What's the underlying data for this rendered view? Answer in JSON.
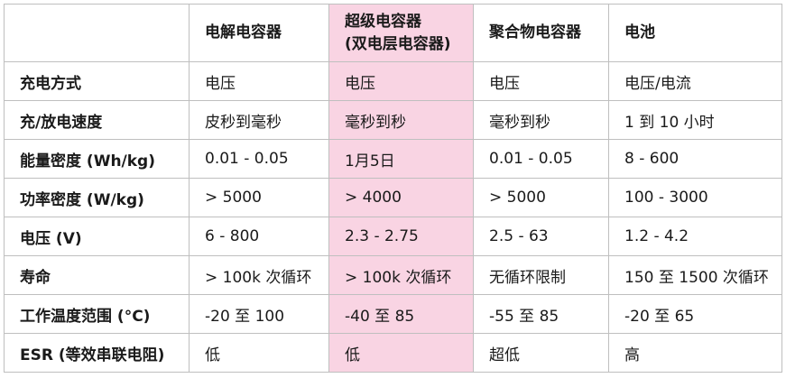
{
  "table": {
    "columns": [
      {
        "lines": [
          ""
        ]
      },
      {
        "lines": [
          "电解电容器"
        ]
      },
      {
        "lines": [
          "超级电容器",
          "(双电层电容器)"
        ]
      },
      {
        "lines": [
          "聚合物电容器"
        ]
      },
      {
        "lines": [
          "电池"
        ]
      }
    ],
    "rows": [
      {
        "label": "充电方式",
        "cells": [
          "电压",
          "电压",
          "电压",
          "电压/电流"
        ]
      },
      {
        "label": "充/放电速度",
        "cells": [
          "皮秒到毫秒",
          "毫秒到秒",
          "毫秒到秒",
          "1 到 10 小时"
        ]
      },
      {
        "label": "能量密度 (Wh/kg)",
        "cells": [
          "0.01 - 0.05",
          "1月5日",
          "0.01 - 0.05",
          "8 - 600"
        ]
      },
      {
        "label": "功率密度 (W/kg)",
        "cells": [
          "> 5000",
          "> 4000",
          "> 5000",
          "100 - 3000"
        ]
      },
      {
        "label": "电压 (V)",
        "cells": [
          "6 - 800",
          "2.3 - 2.75",
          "2.5 - 63",
          "1.2 - 4.2"
        ]
      },
      {
        "label": "寿命",
        "cells": [
          "> 100k 次循环",
          "> 100k 次循环",
          "无循环限制",
          "150 至 1500 次循环"
        ]
      },
      {
        "label": "工作温度范围 (°C)",
        "cells": [
          "-20 至 100",
          "-40 至 85",
          "-55 至 85",
          "-20 至 65"
        ]
      },
      {
        "label": "ESR (等效串联电阻)",
        "cells": [
          "低",
          "低",
          "超低",
          "高"
        ]
      }
    ],
    "highlight_color": "#f9d4e3"
  }
}
